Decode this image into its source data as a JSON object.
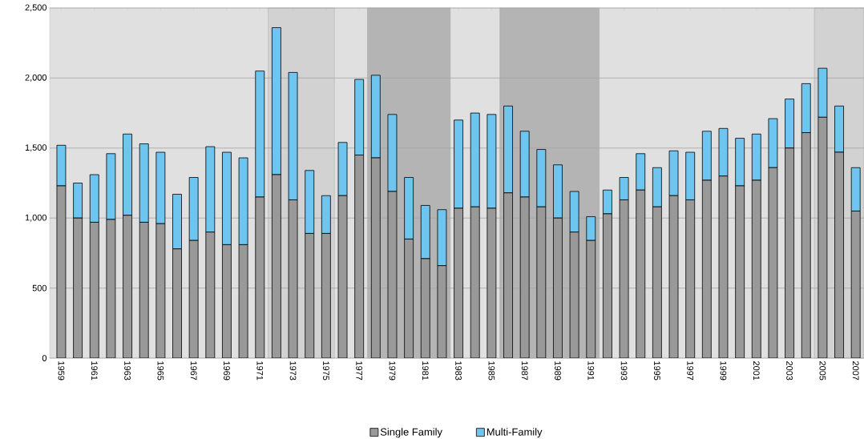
{
  "chart_data": {
    "type": "bar",
    "stacked": true,
    "x": [
      1959,
      1960,
      1961,
      1962,
      1963,
      1964,
      1965,
      1966,
      1967,
      1968,
      1969,
      1970,
      1971,
      1972,
      1973,
      1974,
      1975,
      1976,
      1977,
      1978,
      1979,
      1980,
      1981,
      1982,
      1983,
      1984,
      1985,
      1986,
      1987,
      1988,
      1989,
      1990,
      1991,
      1992,
      1993,
      1994,
      1995,
      1996,
      1997,
      1998,
      1999,
      2000,
      2001,
      2002,
      2003,
      2004,
      2005,
      2006,
      2007
    ],
    "series": [
      {
        "name": "Single Family",
        "color": "#999999",
        "values": [
          1230,
          1000,
          970,
          990,
          1020,
          970,
          960,
          780,
          840,
          900,
          810,
          810,
          1150,
          1310,
          1130,
          890,
          890,
          1160,
          1450,
          1430,
          1190,
          850,
          710,
          660,
          1070,
          1080,
          1070,
          1180,
          1150,
          1080,
          1000,
          900,
          840,
          1030,
          1130,
          1200,
          1080,
          1160,
          1130,
          1270,
          1300,
          1230,
          1270,
          1360,
          1500,
          1610,
          1720,
          1470,
          1050
        ]
      },
      {
        "name": "Multi-Family",
        "color": "#6ec6f0",
        "values": [
          290,
          250,
          340,
          470,
          580,
          560,
          510,
          390,
          450,
          610,
          660,
          620,
          900,
          1050,
          910,
          450,
          270,
          380,
          540,
          590,
          550,
          440,
          380,
          400,
          630,
          670,
          670,
          620,
          470,
          410,
          380,
          290,
          170,
          170,
          160,
          260,
          280,
          320,
          340,
          350,
          340,
          340,
          330,
          350,
          350,
          350,
          350,
          330,
          310
        ]
      }
    ],
    "xlim": [
      1958.3,
      2007.5
    ],
    "xticks": [
      1959,
      1961,
      1963,
      1965,
      1967,
      1969,
      1971,
      1973,
      1975,
      1977,
      1979,
      1981,
      1983,
      1985,
      1987,
      1989,
      1991,
      1993,
      1995,
      1997,
      1999,
      2001,
      2003,
      2005,
      2007
    ],
    "ylim": [
      0,
      2500
    ],
    "yticks": [
      0,
      500,
      {
        "value": 1000,
        "label": "1,000"
      },
      {
        "value": 1500,
        "label": "1,500"
      },
      {
        "value": 2000,
        "label": "2,000"
      },
      {
        "value": 2500,
        "label": "2,500"
      }
    ],
    "grid": "y",
    "legend": "bottom",
    "bands": [
      {
        "axis": "x",
        "from": 1971.5,
        "to": 1975.5,
        "color": "#d2d2d2"
      },
      {
        "axis": "x",
        "from": 1977.5,
        "to": 1982.5,
        "color": "#b4b4b4"
      },
      {
        "axis": "x",
        "from": 1985.5,
        "to": 1991.5,
        "color": "#b4b4b4"
      },
      {
        "axis": "x",
        "from": 2004.5,
        "to": 2007.5,
        "color": "#d2d2d2"
      }
    ]
  }
}
